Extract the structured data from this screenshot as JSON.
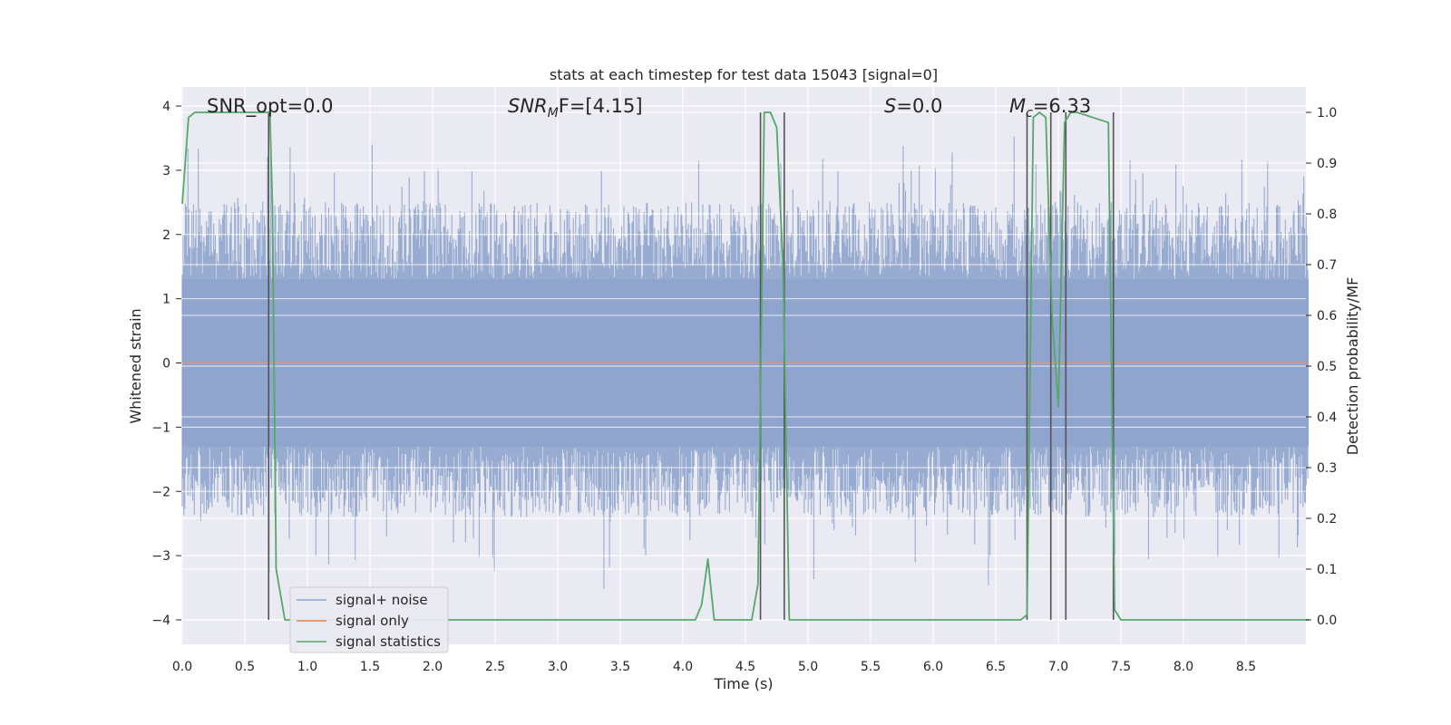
{
  "chart_data": {
    "type": "line",
    "title": "stats at each timestep for test data 15043 [signal=0]",
    "xlabel": "Time (s)",
    "ylabel": "Whitened strain",
    "y2label": "Detection probability/MF",
    "xlim": [
      0.0,
      9.0
    ],
    "ylim": [
      -4.4,
      4.3
    ],
    "y2lim": [
      -0.05,
      1.05
    ],
    "xticks": [
      0.0,
      0.5,
      1.0,
      1.5,
      2.0,
      2.5,
      3.0,
      3.5,
      4.0,
      4.5,
      5.0,
      5.5,
      6.0,
      6.5,
      7.0,
      7.5,
      8.0,
      8.5
    ],
    "xtick_labels": [
      "0.0",
      "0.5",
      "1.0",
      "1.5",
      "2.0",
      "2.5",
      "3.0",
      "3.5",
      "4.0",
      "4.5",
      "5.0",
      "5.5",
      "6.0",
      "6.5",
      "7.0",
      "7.5",
      "8.0",
      "8.5"
    ],
    "yticks": [
      -4,
      -3,
      -2,
      -1,
      0,
      1,
      2,
      3,
      4
    ],
    "ytick_labels": [
      "−4",
      "−3",
      "−2",
      "−1",
      "0",
      "1",
      "2",
      "3",
      "4"
    ],
    "y2ticks": [
      0.0,
      0.1,
      0.2,
      0.3,
      0.4,
      0.5,
      0.6,
      0.7,
      0.8,
      0.9,
      1.0
    ],
    "y2tick_labels": [
      "0.0",
      "0.1",
      "0.2",
      "0.3",
      "0.4",
      "0.5",
      "0.6",
      "0.7",
      "0.8",
      "0.9",
      "1.0"
    ],
    "grid": true,
    "legend_position": "lower-left",
    "annotations": {
      "snr_opt": "SNR_opt=0.0",
      "snr_mf_main": "SNR",
      "snr_mf_sub": "M",
      "snr_mf_rest": "F=[4.15]",
      "s_main": "S",
      "s_rest": "=0.0",
      "mc_main": "M",
      "mc_sub": "c",
      "mc_rest": "=6.33"
    },
    "series": [
      {
        "name": "signal+ noise",
        "color": "#8fa4cc",
        "kind": "noise",
        "amplitude_envelope": 2.2,
        "peak_min": -3.7,
        "peak_max": 3.9
      },
      {
        "name": "signal only",
        "color": "#dd8452",
        "x": [
          0.0,
          9.0
        ],
        "y": [
          0.0,
          0.0
        ]
      },
      {
        "name": "signal statistics",
        "color": "#55a868",
        "axis": "right",
        "x": [
          0.0,
          0.05,
          0.1,
          0.7,
          0.72,
          0.75,
          0.82,
          4.1,
          4.15,
          4.2,
          4.25,
          4.55,
          4.6,
          4.65,
          4.7,
          4.75,
          4.8,
          4.85,
          6.7,
          6.75,
          6.8,
          6.85,
          6.9,
          6.95,
          7.0,
          7.05,
          7.1,
          7.15,
          7.4,
          7.45,
          7.5,
          7.55,
          9.0
        ],
        "y": [
          0.82,
          0.99,
          1.0,
          1.0,
          0.82,
          0.1,
          0.0,
          0.0,
          0.03,
          0.12,
          0.0,
          0.0,
          0.07,
          1.0,
          1.0,
          0.97,
          0.7,
          0.0,
          0.0,
          0.01,
          0.99,
          1.0,
          0.99,
          0.6,
          0.42,
          0.98,
          1.0,
          1.0,
          0.98,
          0.02,
          0.0,
          0.0,
          0.0
        ]
      }
    ],
    "vertical_markers": [
      0.69,
      4.62,
      4.81,
      6.75,
      6.94,
      7.06,
      7.44
    ],
    "vertical_marker_color": "#555555"
  }
}
